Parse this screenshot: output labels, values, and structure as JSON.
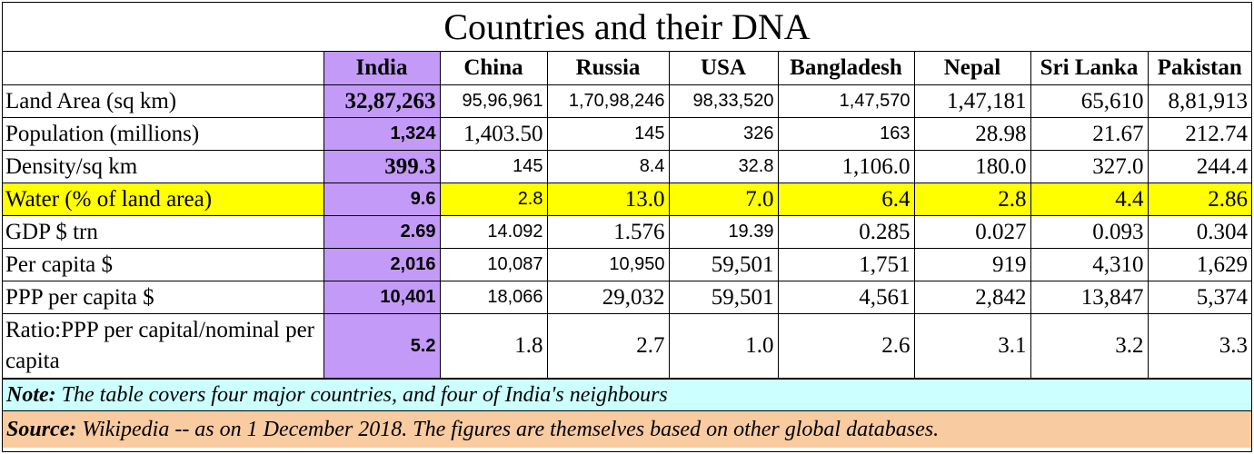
{
  "title": "Countries and their DNA",
  "columns": [
    "India",
    "China",
    "Russia",
    "USA",
    "Bangladesh",
    "Nepal",
    "Sri Lanka",
    "Pakistan"
  ],
  "rows": [
    {
      "label": "Land Area (sq km)",
      "values": [
        "32,87,263",
        "95,96,961",
        "1,70,98,246",
        "98,33,520",
        "1,47,570",
        "1,47,181",
        "65,610",
        "8,81,913"
      ]
    },
    {
      "label": "Population (millions)",
      "values": [
        "1,324",
        "1,403.50",
        "145",
        "326",
        "163",
        "28.98",
        "21.67",
        "212.74"
      ]
    },
    {
      "label": "Density/sq km",
      "values": [
        "399.3",
        "145",
        "8.4",
        "32.8",
        "1,106.0",
        "180.0",
        "327.0",
        "244.4"
      ]
    },
    {
      "label": "Water (% of land area)",
      "values": [
        "9.6",
        "2.8",
        "13.0",
        "7.0",
        "6.4",
        "2.8",
        "4.4",
        "2.86"
      ]
    },
    {
      "label": "GDP $ trn",
      "values": [
        "2.69",
        "14.092",
        "1.576",
        "19.39",
        "0.285",
        "0.027",
        "0.093",
        "0.304"
      ]
    },
    {
      "label": "Per capita $",
      "values": [
        "2,016",
        "10,087",
        "10,950",
        "59,501",
        "1,751",
        "919",
        "4,310",
        "1,629"
      ]
    },
    {
      "label": "PPP per capita $",
      "values": [
        "10,401",
        "18,066",
        "29,032",
        "59,501",
        "4,561",
        "2,842",
        "13,847",
        "5,374"
      ]
    },
    {
      "label": "Ratio:PPP per capital/nominal per capita",
      "values": [
        "5.2",
        "1.8",
        "2.7",
        "1.0",
        "2.6",
        "3.1",
        "3.2",
        "3.3"
      ]
    }
  ],
  "note": {
    "prefix": "Note:",
    "text": " The table covers four major countries, and four of India's neighbours"
  },
  "source": {
    "prefix": "Source:",
    "text": " Wikipedia  -- as on 1 December 2018. The figures are themselves based on other global databases."
  },
  "colors": {
    "india": "#c39af8",
    "water_row": "#ffff00",
    "note_bg": "#ccffff",
    "source_bg": "#f9cba0"
  }
}
